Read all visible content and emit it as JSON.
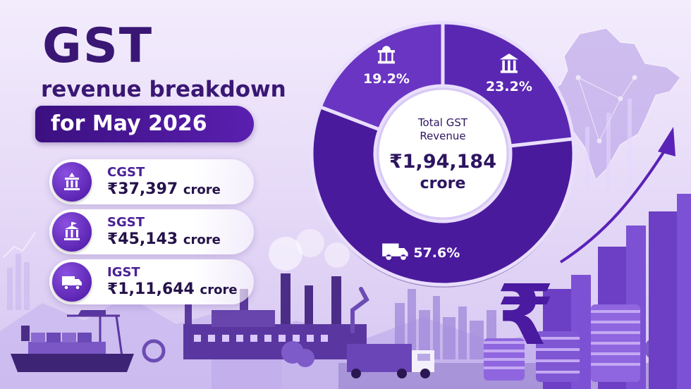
{
  "title": {
    "main": "GST",
    "subtitle": "revenue breakdown",
    "period": "for May 2026"
  },
  "cards": [
    {
      "label": "CGST",
      "value": "₹37,397",
      "unit": "crore",
      "icon": "parliament-building-icon"
    },
    {
      "label": "SGST",
      "value": "₹45,143",
      "unit": "crore",
      "icon": "state-building-icon"
    },
    {
      "label": "IGST",
      "value": "₹1,11,644",
      "unit": "crore",
      "icon": "truck-icon"
    }
  ],
  "chart_data": {
    "type": "pie",
    "title": "Total GST Revenue",
    "center_value": "₹1,94,184",
    "center_unit": "crore",
    "slices": [
      {
        "name": "CGST",
        "value": 19.2,
        "label": "19.2%",
        "icon": "parliament-building-icon"
      },
      {
        "name": "SGST",
        "value": 23.2,
        "label": "23.2%",
        "icon": "state-building-icon"
      },
      {
        "name": "IGST",
        "value": 57.6,
        "label": "57.6%",
        "icon": "truck-icon"
      }
    ]
  },
  "colors": {
    "primary_dark": "#3a1774",
    "accent": "#5a1fb0",
    "slice_cgst": "#6a35c2",
    "slice_sgst": "#5a27b3",
    "slice_igst": "#4a1a9c"
  },
  "decor_icons": [
    "india-map-icon",
    "factory-icon",
    "cargo-ship-icon",
    "rupee-symbol-icon",
    "coin-stack-icon",
    "bar-growth-icon",
    "trend-arrow-icon"
  ]
}
